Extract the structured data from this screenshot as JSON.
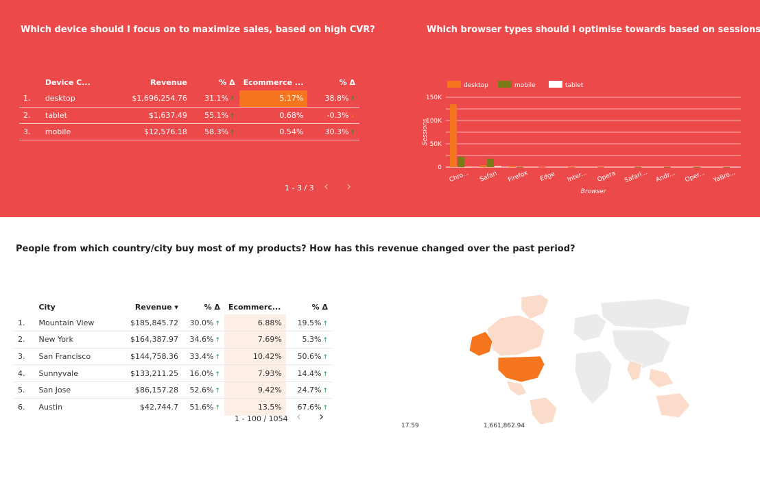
{
  "colors": {
    "accent_red": "#ec4a4a",
    "orange": "#f5761e",
    "olive": "#7b7b17",
    "light_peach": "#fdeee6",
    "up_green": "#1e8e3e"
  },
  "device_panel": {
    "title": "Which device should I focus on to maximize sales, based on high CVR?",
    "headers": [
      "Device C...",
      "Revenue",
      "% Δ",
      "Ecommerce ...",
      "% Δ"
    ],
    "rows": [
      {
        "n": "1.",
        "device": "desktop",
        "revenue": "$1,696,254.76",
        "rev_delta": "31.1%",
        "rev_dir": "up",
        "conv": "5.17%",
        "conv_delta": "38.8%",
        "conv_dir": "up"
      },
      {
        "n": "2.",
        "device": "tablet",
        "revenue": "$1,637.49",
        "rev_delta": "55.1%",
        "rev_dir": "up",
        "conv": "0.68%",
        "conv_delta": "-0.3%",
        "conv_dir": "down"
      },
      {
        "n": "3.",
        "device": "mobile",
        "revenue": "$12,576.18",
        "rev_delta": "58.3%",
        "rev_dir": "up",
        "conv": "0.54%",
        "conv_delta": "30.3%",
        "conv_dir": "up"
      }
    ],
    "pager": "1 - 3 / 3"
  },
  "browser_panel": {
    "title": "Which browser types should I optimise towards based on sessions"
  },
  "chart_data": {
    "type": "bar",
    "categories": [
      "Chro...",
      "Safari",
      "Firefox",
      "Edge",
      "Inter...",
      "Opera",
      "Safari...",
      "Andr...",
      "Oper...",
      "YaBro..."
    ],
    "series": [
      {
        "name": "desktop",
        "color": "#f5761e",
        "values": [
          135000,
          4000,
          2500,
          600,
          200,
          300,
          0,
          0,
          0,
          0
        ]
      },
      {
        "name": "mobile",
        "color": "#7b7b17",
        "values": [
          22000,
          18000,
          200,
          0,
          0,
          0,
          200,
          300,
          100,
          50
        ]
      },
      {
        "name": "tablet",
        "color": "#ffffff",
        "values": [
          200,
          2000,
          0,
          0,
          0,
          0,
          0,
          0,
          0,
          0
        ]
      }
    ],
    "yticks": [
      "0",
      "50K",
      "100K",
      "150K"
    ],
    "ylim": [
      0,
      150000
    ],
    "ylabel": "Sessions",
    "xlabel": "Browser",
    "legend": "top-left",
    "grid": true
  },
  "city_panel": {
    "title": "People from which country/city buy most of my products? How has this revenue changed over the past period?",
    "headers": [
      "City",
      "Revenue ▾",
      "% Δ",
      "Ecommerc...",
      "% Δ"
    ],
    "rows": [
      {
        "n": "1.",
        "city": "Mountain View",
        "revenue": "$185,845.72",
        "rev_delta": "30.0%",
        "conv": "6.88%",
        "conv_delta": "19.5%"
      },
      {
        "n": "2.",
        "city": "New York",
        "revenue": "$164,387.97",
        "rev_delta": "34.6%",
        "conv": "7.69%",
        "conv_delta": "5.3%"
      },
      {
        "n": "3.",
        "city": "San Francisco",
        "revenue": "$144,758.36",
        "rev_delta": "33.4%",
        "conv": "10.42%",
        "conv_delta": "50.6%"
      },
      {
        "n": "4.",
        "city": "Sunnyvale",
        "revenue": "$133,211.25",
        "rev_delta": "16.0%",
        "conv": "7.93%",
        "conv_delta": "14.4%"
      },
      {
        "n": "5.",
        "city": "San Jose",
        "revenue": "$86,157.28",
        "rev_delta": "52.6%",
        "conv": "9.42%",
        "conv_delta": "24.7%"
      },
      {
        "n": "6.",
        "city": "Austin",
        "revenue": "$42,744.7",
        "rev_delta": "51.6%",
        "conv": "13.5%",
        "conv_delta": "67.6%"
      }
    ],
    "pager": "1 - 100 / 1054"
  },
  "map_legend": {
    "min": "17.59",
    "max": "1,661,862.94"
  },
  "icons": {
    "prev": "chevron-left-icon",
    "next": "chevron-right-icon",
    "up": "arrow-up-icon",
    "down": "arrow-down-icon"
  }
}
